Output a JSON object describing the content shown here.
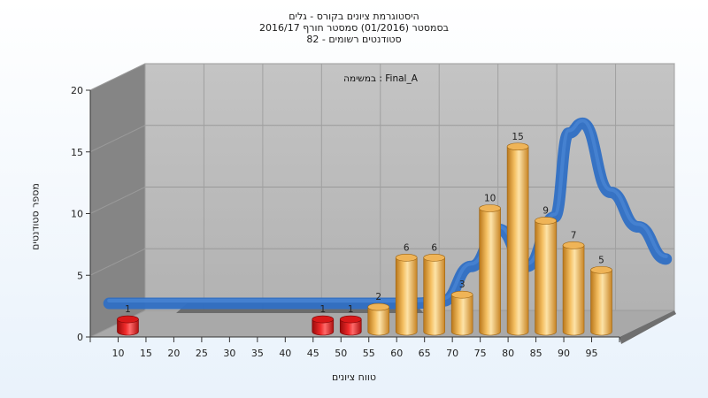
{
  "header": {
    "line1": "היסטוגרמת ציונים בקורס - גלים",
    "line2": "בסמסטר  (01/2016)  סמסטר חורף 2016/17",
    "line3": "סטודנטים רשומים - 82"
  },
  "chart_data": {
    "type": "bar",
    "title": "היסטוגרמת ציונים בקורס - גלים",
    "subtitle": "בסמסטר  (01/2016)  סמסטר חורף 2016/17 / סטודנטים רשומים - 82",
    "xlabel": "טווח ציונים",
    "ylabel": "מספר סטודנטים",
    "annotation": "במשימה : Final_A",
    "x_ticks": [
      "10",
      "15",
      "20",
      "25",
      "30",
      "35",
      "40",
      "45",
      "50",
      "55",
      "60",
      "65",
      "70",
      "75",
      "80",
      "85",
      "90",
      "95"
    ],
    "y_ticks": [
      "0",
      "5",
      "10",
      "15",
      "20"
    ],
    "ylim": [
      0,
      20
    ],
    "grid": true,
    "bars": [
      {
        "x": 10,
        "value": 1,
        "label": "1",
        "color": "red"
      },
      {
        "x": 45,
        "value": 1,
        "label": "1",
        "color": "red"
      },
      {
        "x": 50,
        "value": 1,
        "label": "1",
        "color": "red"
      },
      {
        "x": 55,
        "value": 2,
        "label": "2",
        "color": "orange"
      },
      {
        "x": 60,
        "value": 6,
        "label": "6",
        "color": "orange"
      },
      {
        "x": 65,
        "value": 6,
        "label": "6",
        "color": "orange"
      },
      {
        "x": 70,
        "value": 3,
        "label": "3",
        "color": "orange"
      },
      {
        "x": 75,
        "value": 10,
        "label": "10",
        "color": "orange"
      },
      {
        "x": 80,
        "value": 15,
        "label": "15",
        "color": "orange"
      },
      {
        "x": 85,
        "value": 9,
        "label": "9",
        "color": "orange"
      },
      {
        "x": 90,
        "value": 7,
        "label": "7",
        "color": "orange"
      },
      {
        "x": 95,
        "value": 5,
        "label": "5",
        "color": "orange"
      }
    ],
    "curve": {
      "color": "#2f6fc4",
      "x": [
        0,
        55,
        60,
        65,
        70,
        75,
        80,
        82.5,
        85,
        90,
        95,
        100
      ],
      "y": [
        1,
        1,
        1.2,
        4,
        7,
        4,
        8,
        14.8,
        15.6,
        10,
        7.2,
        4.6
      ]
    }
  }
}
